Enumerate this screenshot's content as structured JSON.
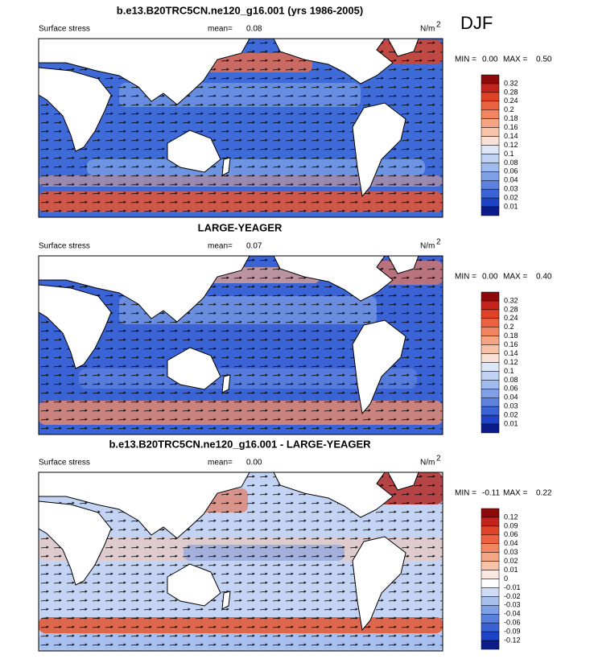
{
  "figure_label": "DJF",
  "panels": [
    {
      "title": "b.e13.B20TRC5CN.ne120_g16.001 (yrs 1986-2005)",
      "left_label": "Surface stress",
      "mean_label": "mean=",
      "mean": "0.08",
      "units": "N/m",
      "units_sup": "2",
      "min_label": "MIN =",
      "min": "0.00",
      "max_label": "MAX =",
      "max": "0.50",
      "colorbar": {
        "colors": [
          "#8c0a0a",
          "#c3231a",
          "#df4226",
          "#ec6240",
          "#f28660",
          "#f5a584",
          "#f7c4aa",
          "#f9e2d5",
          "#dde7f8",
          "#bfd2f3",
          "#a0bbed",
          "#7f9fe6",
          "#5c82de",
          "#3a64d6",
          "#1d44c8",
          "#0b1c8a"
        ],
        "labels": [
          "0.32",
          "0.28",
          "0.24",
          "0.2",
          "0.18",
          "0.16",
          "0.14",
          "0.12",
          "0.1",
          "0.08",
          "0.06",
          "0.04",
          "0.03",
          "0.02",
          "0.01"
        ]
      }
    },
    {
      "title": "LARGE-YEAGER",
      "left_label": "Surface stress",
      "mean_label": "mean=",
      "mean": "0.07",
      "units": "N/m",
      "units_sup": "2",
      "min_label": "MIN =",
      "min": "0.00",
      "max_label": "MAX =",
      "max": "0.40",
      "colorbar": {
        "colors": [
          "#8c0a0a",
          "#c3231a",
          "#df4226",
          "#ec6240",
          "#f28660",
          "#f5a584",
          "#f7c4aa",
          "#f9e2d5",
          "#dde7f8",
          "#bfd2f3",
          "#a0bbed",
          "#7f9fe6",
          "#5c82de",
          "#3a64d6",
          "#1d44c8",
          "#0b1c8a"
        ],
        "labels": [
          "0.32",
          "0.28",
          "0.24",
          "0.2",
          "0.18",
          "0.16",
          "0.14",
          "0.12",
          "0.1",
          "0.08",
          "0.06",
          "0.04",
          "0.03",
          "0.02",
          "0.01"
        ]
      }
    },
    {
      "title": "b.e13.B20TRC5CN.ne120_g16.001 - LARGE-YEAGER",
      "left_label": "Surface stress",
      "mean_label": "mean=",
      "mean": "0.00",
      "units": "N/m",
      "units_sup": "2",
      "min_label": "MIN =",
      "min": "-0.11",
      "max_label": "MAX =",
      "max": "0.22",
      "colorbar": {
        "colors": [
          "#8c0a0a",
          "#c3231a",
          "#df4226",
          "#ec6240",
          "#f28660",
          "#f5a584",
          "#f7c4aa",
          "#fbe9e1",
          "#ffffff",
          "#cfdcf5",
          "#a8c0ee",
          "#7f9fe6",
          "#5a80de",
          "#3a62d6",
          "#1d43c8",
          "#0b1c8a"
        ],
        "labels": [
          "0.12",
          "0.09",
          "0.06",
          "0.04",
          "0.03",
          "0.02",
          "0.01",
          "0",
          "-0.01",
          "-0.02",
          "-0.03",
          "-0.04",
          "-0.06",
          "-0.09",
          "-0.12"
        ]
      }
    }
  ]
}
